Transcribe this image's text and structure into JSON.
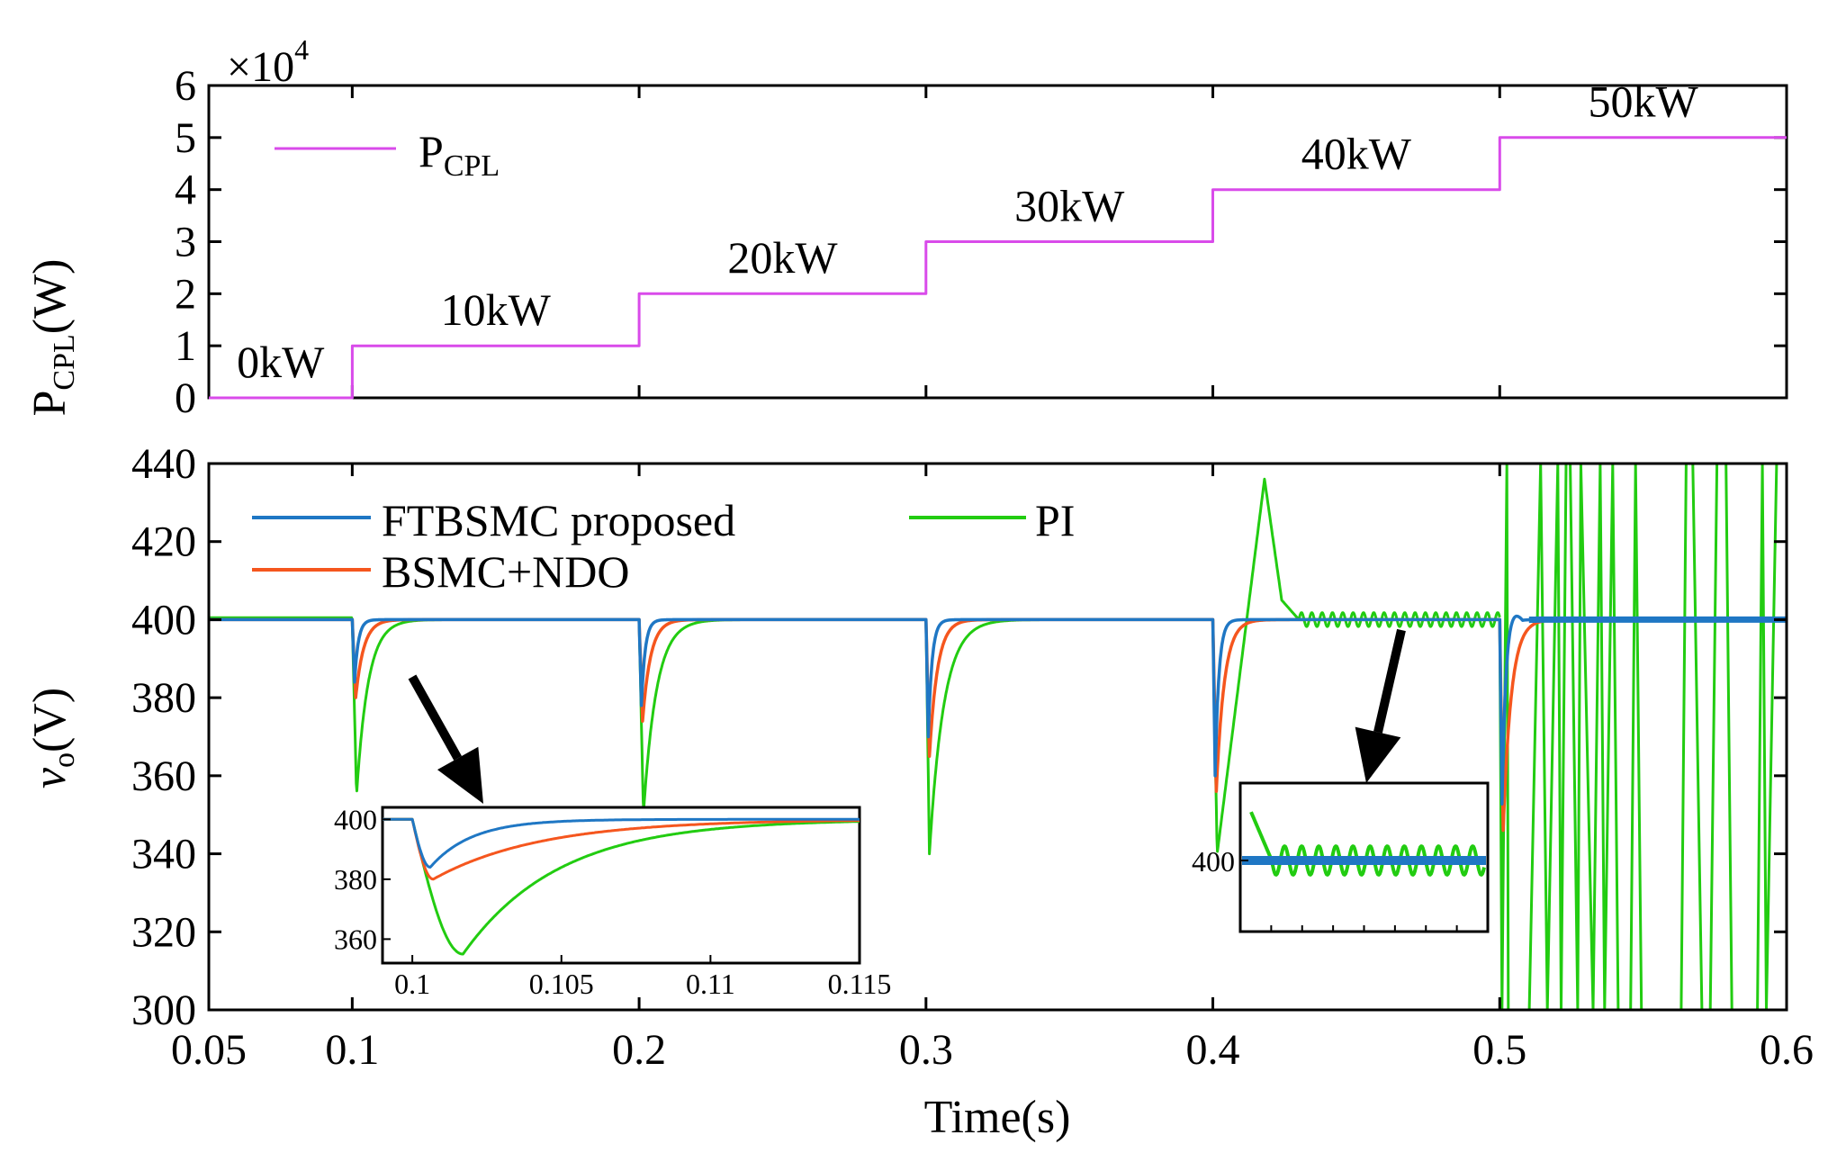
{
  "colors": {
    "ftbsmc": "#1f77c4",
    "bsmc_ndo": "#f5561e",
    "pi": "#22cc11",
    "pcpl": "#d94bea",
    "axis": "#000000",
    "arrow": "#000000"
  },
  "chart_data": [
    {
      "type": "line",
      "id": "top",
      "ylabel": "P",
      "ylabel_sub": "CPL",
      "ylabel_unit": "(W)",
      "exponent_label": "×10",
      "exponent_power": "4",
      "xlim": [
        0.05,
        0.6
      ],
      "ylim": [
        0,
        6
      ],
      "yticks": [
        "0",
        "1",
        "2",
        "3",
        "4",
        "5",
        "6"
      ],
      "legend": {
        "name": "P",
        "sub": "CPL",
        "position": "top-left"
      },
      "series": [
        {
          "name": "P_CPL",
          "x": [
            0.05,
            0.1,
            0.1,
            0.2,
            0.2,
            0.3,
            0.3,
            0.4,
            0.4,
            0.5,
            0.5,
            0.6
          ],
          "y": [
            0,
            0,
            1,
            1,
            2,
            2,
            3,
            3,
            4,
            4,
            5,
            5
          ]
        }
      ],
      "annotations": [
        {
          "text": "0kW",
          "x": 0.075,
          "y": 0.4
        },
        {
          "text": "10kW",
          "x": 0.15,
          "y": 1.4
        },
        {
          "text": "20kW",
          "x": 0.25,
          "y": 2.4
        },
        {
          "text": "30kW",
          "x": 0.35,
          "y": 3.4
        },
        {
          "text": "40kW",
          "x": 0.45,
          "y": 4.4
        },
        {
          "text": "50kW",
          "x": 0.55,
          "y": 5.4
        }
      ]
    },
    {
      "type": "line",
      "id": "bottom",
      "xlabel": "Time(s)",
      "ylabel": "v",
      "ylabel_sub": "o",
      "ylabel_unit": "(V)",
      "xlim": [
        0.05,
        0.6
      ],
      "ylim": [
        300,
        440
      ],
      "xticks": [
        "0.05",
        "0.1",
        "0.2",
        "0.3",
        "0.4",
        "0.5",
        "0.6"
      ],
      "yticks": [
        "300",
        "320",
        "340",
        "360",
        "380",
        "400",
        "420",
        "440"
      ],
      "legend": [
        "FTBSMC proposed",
        "BSMC+NDO",
        "PI"
      ],
      "dips": [
        {
          "t": 0.1,
          "ftbsmc": 384,
          "bsmc_ndo": 380,
          "pi": 355
        },
        {
          "t": 0.2,
          "ftbsmc": 378,
          "bsmc_ndo": 374,
          "pi": 350
        },
        {
          "t": 0.3,
          "ftbsmc": 370,
          "bsmc_ndo": 365,
          "pi": 340
        },
        {
          "t": 0.4,
          "ftbsmc": 360,
          "bsmc_ndo": 356,
          "pi": 340
        },
        {
          "t": 0.5,
          "ftbsmc": 352,
          "bsmc_ndo": 346,
          "pi": 300
        }
      ],
      "pi_overshoot": {
        "t": 0.418,
        "v": 436
      },
      "steady_state": 400
    },
    {
      "type": "line",
      "id": "inset1",
      "xlim": [
        0.099,
        0.115
      ],
      "ylim": [
        352,
        404
      ],
      "xticks": [
        "0.1",
        "0.105",
        "0.11",
        "0.115"
      ],
      "yticks": [
        "360",
        "380",
        "400"
      ],
      "min_values": {
        "ftbsmc": 384,
        "bsmc_ndo": 380,
        "pi": 355
      }
    },
    {
      "type": "line",
      "id": "inset2",
      "yticks": [
        "400"
      ]
    }
  ]
}
